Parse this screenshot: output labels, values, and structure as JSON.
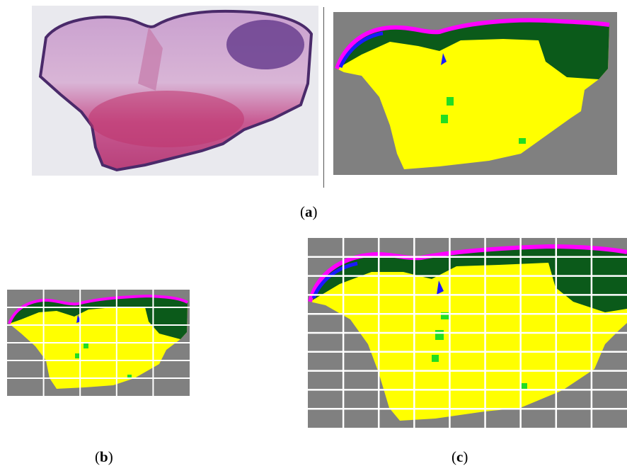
{
  "captions": {
    "a": {
      "open": "(",
      "letter": "a",
      "close": ")"
    },
    "b": {
      "open": "(",
      "letter": "b",
      "close": ")"
    },
    "c": {
      "open": "(",
      "letter": "c",
      "close": ")"
    }
  },
  "colors": {
    "background_gray": "#808080",
    "dermis_yellow": "#ffff00",
    "epidermis_dark_green": "#0b5a1a",
    "magenta_border": "#ff00ff",
    "blue": "#1a1aff",
    "bright_green": "#22dd22",
    "grid_line": "#ffffff",
    "he_pink": "#d28cc0",
    "he_purple": "#6a3f8f"
  },
  "grid": {
    "b_columns": 5,
    "b_rows": 6,
    "c_columns": 9,
    "c_rows": 10
  }
}
